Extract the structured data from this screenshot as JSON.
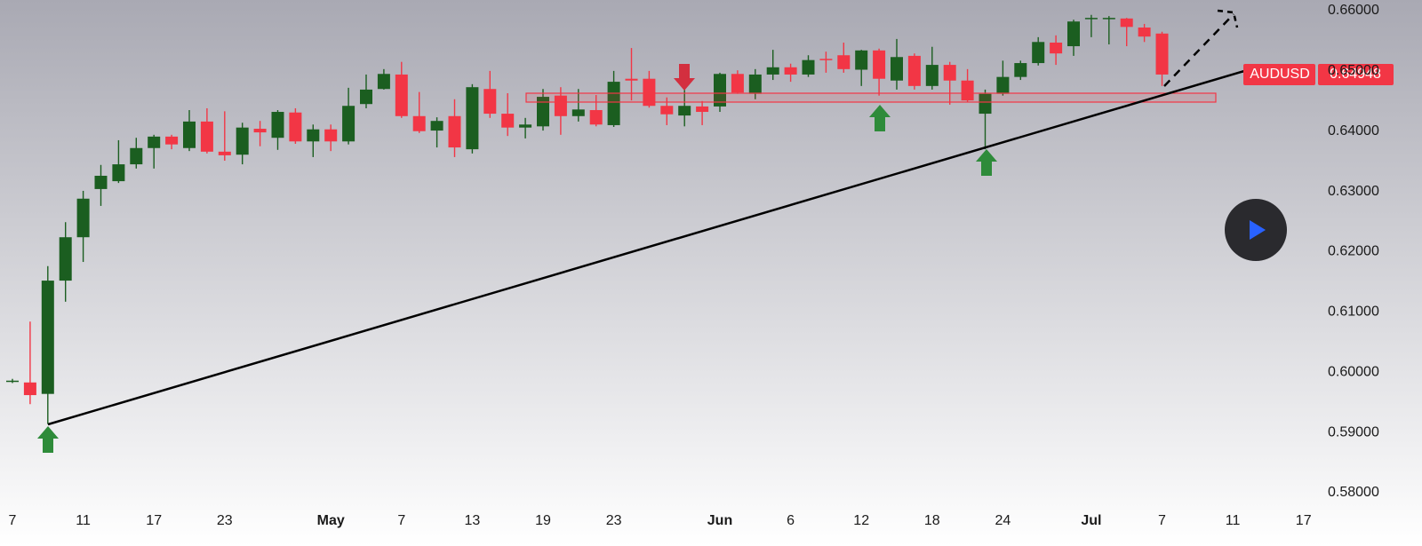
{
  "chart_data": {
    "type": "candlestick",
    "symbol": "AUDUSD",
    "last_price_label": "0.64948",
    "categories": [
      "7",
      null,
      null,
      null,
      "11",
      null,
      null,
      null,
      "17",
      null,
      null,
      null,
      "23",
      null,
      null,
      null,
      null,
      null,
      "May",
      null,
      null,
      null,
      "7",
      null,
      null,
      null,
      "13",
      null,
      null,
      null,
      "19",
      null,
      null,
      null,
      "23",
      null,
      null,
      null,
      null,
      null,
      "Jun",
      null,
      null,
      null,
      "6",
      null,
      null,
      null,
      "12",
      null,
      null,
      null,
      "18",
      null,
      null,
      null,
      "24",
      null,
      null,
      null,
      null,
      "Jul",
      null,
      null,
      null,
      "7",
      null,
      null,
      null,
      "11",
      null,
      null,
      null,
      "17"
    ],
    "open": [
      0.5984,
      0.5983,
      0.5964,
      0.6152,
      0.6224,
      0.6304,
      0.6317,
      0.6345,
      0.6372,
      0.6391,
      0.6372,
      0.6416,
      0.6366,
      0.6361,
      0.6404,
      0.6389,
      0.6431,
      0.6383,
      0.6403,
      0.6383,
      0.6445,
      0.647,
      0.6494,
      0.6425,
      0.6401,
      0.6425,
      0.637,
      0.647,
      0.6429,
      0.6406,
      0.6408,
      0.6459,
      0.6425,
      0.6435,
      0.641,
      0.6487,
      0.6487,
      0.6442,
      0.6426,
      0.6441,
      0.6441,
      0.6495,
      0.6462,
      0.6494,
      0.6506,
      0.6494,
      0.652,
      0.6526,
      0.6502,
      0.6534,
      0.6484,
      0.6525,
      0.6475,
      0.651,
      0.6484,
      0.6429,
      0.6462,
      0.649,
      0.6513,
      0.6547,
      0.6541,
      0.6587,
      0.6587,
      0.6587,
      0.6572,
      0.6562,
      null,
      null,
      null,
      null,
      null,
      null,
      null,
      null
    ],
    "high": [
      0.5989,
      0.6084,
      0.6176,
      0.6249,
      0.6301,
      0.6344,
      0.6385,
      0.6389,
      0.6394,
      0.6394,
      0.6435,
      0.6438,
      0.6433,
      0.6414,
      0.6417,
      0.6435,
      0.6438,
      0.6411,
      0.6411,
      0.6472,
      0.6494,
      0.6503,
      0.6515,
      0.6465,
      0.6423,
      0.6453,
      0.6478,
      0.65,
      0.6463,
      0.6422,
      0.647,
      0.6473,
      0.647,
      0.646,
      0.65,
      0.6538,
      0.65,
      0.6456,
      0.647,
      0.645,
      0.6497,
      0.6501,
      0.6503,
      0.6535,
      0.6512,
      0.6526,
      0.6532,
      0.6547,
      0.6535,
      0.6537,
      0.6553,
      0.6529,
      0.654,
      0.6515,
      0.6503,
      0.6469,
      0.6517,
      0.6517,
      0.6556,
      0.6559,
      0.6585,
      0.6593,
      0.6591,
      0.6588,
      0.6578,
      0.6565,
      null,
      null,
      null,
      null,
      null,
      null,
      null,
      null
    ],
    "low": [
      0.5982,
      0.5947,
      0.5914,
      0.6117,
      0.6183,
      0.6276,
      0.6314,
      0.6338,
      0.6338,
      0.637,
      0.6367,
      0.6363,
      0.6351,
      0.6345,
      0.6375,
      0.6369,
      0.6379,
      0.6357,
      0.6367,
      0.6378,
      0.6438,
      0.6469,
      0.6422,
      0.6397,
      0.6373,
      0.6357,
      0.6363,
      0.6422,
      0.6392,
      0.6388,
      0.6401,
      0.6394,
      0.6416,
      0.6408,
      0.6407,
      0.6451,
      0.6439,
      0.641,
      0.6408,
      0.641,
      0.6432,
      0.6462,
      0.6453,
      0.6485,
      0.6482,
      0.649,
      0.6497,
      0.6497,
      0.6475,
      0.6459,
      0.6469,
      0.6469,
      0.6469,
      0.6444,
      0.6448,
      0.637,
      0.6459,
      0.6485,
      0.6509,
      0.651,
      0.6525,
      0.6556,
      0.6544,
      0.6541,
      0.6548,
      0.6475,
      null,
      null,
      null,
      null,
      null,
      null,
      null,
      null
    ],
    "close": [
      0.5986,
      0.5962,
      0.6152,
      0.6224,
      0.6288,
      0.6326,
      0.6345,
      0.6372,
      0.6391,
      0.6378,
      0.6416,
      0.6366,
      0.636,
      0.6406,
      0.6398,
      0.6432,
      0.6383,
      0.6403,
      0.6383,
      0.6442,
      0.6469,
      0.6495,
      0.6425,
      0.64,
      0.6417,
      0.6373,
      0.6473,
      0.6429,
      0.6406,
      0.6411,
      0.6457,
      0.6425,
      0.6436,
      0.6411,
      0.6482,
      0.6484,
      0.6442,
      0.6428,
      0.6442,
      0.6432,
      0.6495,
      0.6464,
      0.6494,
      0.6506,
      0.6494,
      0.6518,
      0.6518,
      0.6503,
      0.6534,
      0.6487,
      0.6523,
      0.6475,
      0.651,
      0.6484,
      0.6451,
      0.6462,
      0.649,
      0.6513,
      0.6548,
      0.6529,
      0.6582,
      0.6588,
      0.6588,
      0.6573,
      0.6557,
      0.6494,
      null,
      null,
      null,
      null,
      null,
      null,
      null,
      null
    ],
    "up_color": "#1b5e20",
    "down_color": "#f23645",
    "ylim": [
      0.58,
      0.66
    ],
    "yticks": [
      {
        "value": 0.58,
        "label": "0.58000"
      },
      {
        "value": 0.59,
        "label": "0.59000"
      },
      {
        "value": 0.6,
        "label": "0.60000"
      },
      {
        "value": 0.61,
        "label": "0.61000"
      },
      {
        "value": 0.62,
        "label": "0.62000"
      },
      {
        "value": 0.63,
        "label": "0.63000"
      },
      {
        "value": 0.64,
        "label": "0.64000"
      },
      {
        "value": 0.65,
        "label": "0.65000"
      },
      {
        "value": 0.66,
        "label": "0.66000"
      }
    ]
  }
}
